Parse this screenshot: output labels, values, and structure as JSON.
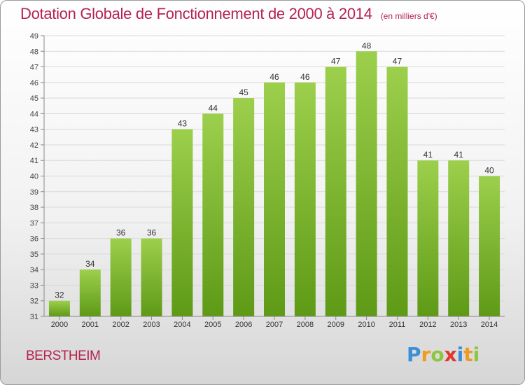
{
  "header": {
    "title": "Dotation Globale de Fonctionnement de 2000 à 2014",
    "unit_note": "(en milliers d'€)"
  },
  "footer": {
    "commune": "BERSTHEIM",
    "logo_text": "Proxiti"
  },
  "colors": {
    "title": "#b4234f",
    "bar_light": "#9ccf4c",
    "bar_dark": "#5e9a16",
    "axis": "#888888",
    "grid": "#d9d9d9"
  },
  "chart_data": {
    "type": "bar",
    "title": "Dotation Globale de Fonctionnement de 2000 à 2014",
    "subtitle": "(en milliers d'€)",
    "xlabel": "",
    "ylabel": "",
    "categories": [
      "2000",
      "2001",
      "2002",
      "2003",
      "2004",
      "2005",
      "2006",
      "2007",
      "2008",
      "2009",
      "2010",
      "2011",
      "2012",
      "2013",
      "2014"
    ],
    "values": [
      32,
      34,
      36,
      36,
      43,
      44,
      45,
      46,
      46,
      47,
      48,
      47,
      41,
      41,
      40
    ],
    "ylim": [
      31,
      49
    ],
    "yticks": [
      31,
      32,
      33,
      34,
      35,
      36,
      37,
      38,
      39,
      40,
      41,
      42,
      43,
      44,
      45,
      46,
      47,
      48,
      49
    ],
    "grid": true,
    "data_labels": true
  }
}
